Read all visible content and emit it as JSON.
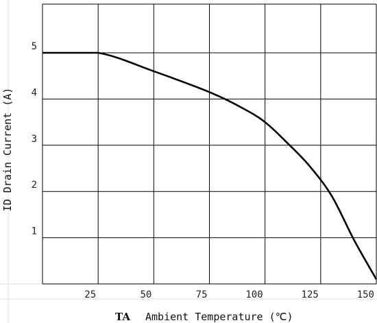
{
  "chart_data": {
    "type": "line",
    "xlabel": "Ambient Temperature (℃)",
    "xlabel_symbol": "TA",
    "ylabel": "ID Drain Current (A)",
    "xlim": [
      0,
      150
    ],
    "ylim": [
      0,
      5
    ],
    "x_ticks": [
      "25",
      "50",
      "75",
      "100",
      "125",
      "150"
    ],
    "y_ticks": [
      "1",
      "2",
      "3",
      "4",
      "5"
    ],
    "grid": true,
    "series": [
      {
        "x": [
          0,
          25,
          50,
          75,
          90,
          100,
          110,
          120,
          130,
          140,
          150
        ],
        "y": [
          5.0,
          5.0,
          4.6,
          4.15,
          3.8,
          3.5,
          3.05,
          2.55,
          1.9,
          0.95,
          0.1
        ]
      }
    ]
  }
}
